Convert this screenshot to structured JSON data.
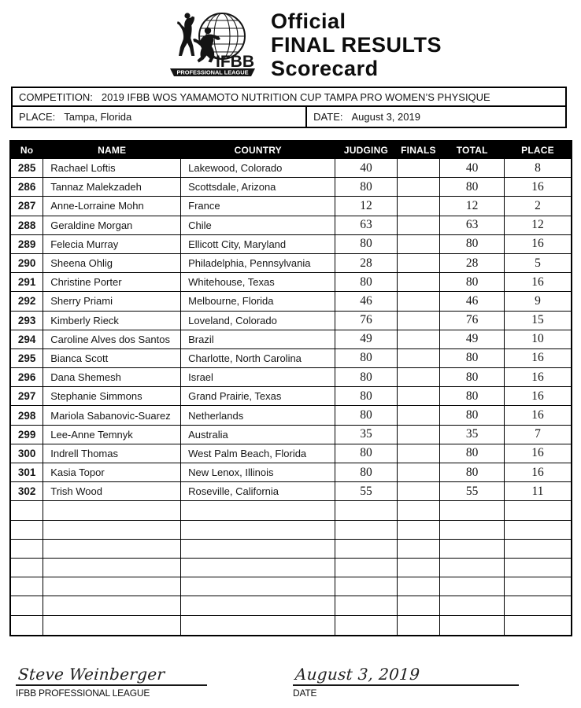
{
  "colors": {
    "ink": "#161616",
    "header_bar_bg": "#000000",
    "paper": "#ffffff"
  },
  "header": {
    "logo": {
      "ifbb": "IFBB",
      "banner": "PROFESSIONAL LEAGUE"
    },
    "title_lines": [
      "Official",
      "FINAL RESULTS",
      "Scorecard"
    ]
  },
  "info": {
    "competition_label": "COMPETITION:",
    "competition_value": "2019 IFBB WOS YAMAMOTO NUTRITION CUP TAMPA PRO WOMEN’S PHYSIQUE",
    "place_label": "PLACE:",
    "place_value": "Tampa, Florida",
    "date_label": "DATE:",
    "date_value": "August 3, 2019"
  },
  "table": {
    "columns": [
      "No",
      "NAME",
      "COUNTRY",
      "JUDGING",
      "FINALS",
      "TOTAL",
      "PLACE"
    ],
    "empty_row_count": 7,
    "rows": [
      {
        "no": "285",
        "name": "Rachael Loftis",
        "country": "Lakewood, Colorado",
        "judging": "40",
        "finals": "",
        "total": "40",
        "place": "8"
      },
      {
        "no": "286",
        "name": "Tannaz Malekzadeh",
        "country": "Scottsdale, Arizona",
        "judging": "80",
        "finals": "",
        "total": "80",
        "place": "16"
      },
      {
        "no": "287",
        "name": "Anne-Lorraine Mohn",
        "country": "France",
        "judging": "12",
        "finals": "",
        "total": "12",
        "place": "2"
      },
      {
        "no": "288",
        "name": "Geraldine Morgan",
        "country": "Chile",
        "judging": "63",
        "finals": "",
        "total": "63",
        "place": "12"
      },
      {
        "no": "289",
        "name": "Felecia Murray",
        "country": "Ellicott City, Maryland",
        "judging": "80",
        "finals": "",
        "total": "80",
        "place": "16"
      },
      {
        "no": "290",
        "name": "Sheena Ohlig",
        "country": "Philadelphia, Pennsylvania",
        "judging": "28",
        "finals": "",
        "total": "28",
        "place": "5"
      },
      {
        "no": "291",
        "name": "Christine Porter",
        "country": "Whitehouse, Texas",
        "judging": "80",
        "finals": "",
        "total": "80",
        "place": "16"
      },
      {
        "no": "292",
        "name": "Sherry Priami",
        "country": "Melbourne, Florida",
        "judging": "46",
        "finals": "",
        "total": "46",
        "place": "9"
      },
      {
        "no": "293",
        "name": "Kimberly Rieck",
        "country": "Loveland, Colorado",
        "judging": "76",
        "finals": "",
        "total": "76",
        "place": "15"
      },
      {
        "no": "294",
        "name": "Caroline Alves dos Santos",
        "country": "Brazil",
        "judging": "49",
        "finals": "",
        "total": "49",
        "place": "10"
      },
      {
        "no": "295",
        "name": "Bianca Scott",
        "country": "Charlotte, North Carolina",
        "judging": "80",
        "finals": "",
        "total": "80",
        "place": "16"
      },
      {
        "no": "296",
        "name": "Dana Shemesh",
        "country": "Israel",
        "judging": "80",
        "finals": "",
        "total": "80",
        "place": "16"
      },
      {
        "no": "297",
        "name": "Stephanie Simmons",
        "country": "Grand Prairie, Texas",
        "judging": "80",
        "finals": "",
        "total": "80",
        "place": "16"
      },
      {
        "no": "298",
        "name": "Mariola Sabanovic-Suarez",
        "country": "Netherlands",
        "judging": "80",
        "finals": "",
        "total": "80",
        "place": "16"
      },
      {
        "no": "299",
        "name": "Lee-Anne Temnyk",
        "country": "Australia",
        "judging": "35",
        "finals": "",
        "total": "35",
        "place": "7"
      },
      {
        "no": "300",
        "name": "Indrell Thomas",
        "country": "West Palm Beach, Florida",
        "judging": "80",
        "finals": "",
        "total": "80",
        "place": "16"
      },
      {
        "no": "301",
        "name": "Kasia Topor",
        "country": "New Lenox, Illinois",
        "judging": "80",
        "finals": "",
        "total": "80",
        "place": "16"
      },
      {
        "no": "302",
        "name": "Trish Wood",
        "country": "Roseville, California",
        "judging": "55",
        "finals": "",
        "total": "55",
        "place": "11"
      }
    ]
  },
  "footer": {
    "signature_name": "Steve Weinberger",
    "signature_label": "IFBB PROFESSIONAL LEAGUE",
    "date_value": "August 3, 2019",
    "date_label": "DATE"
  }
}
